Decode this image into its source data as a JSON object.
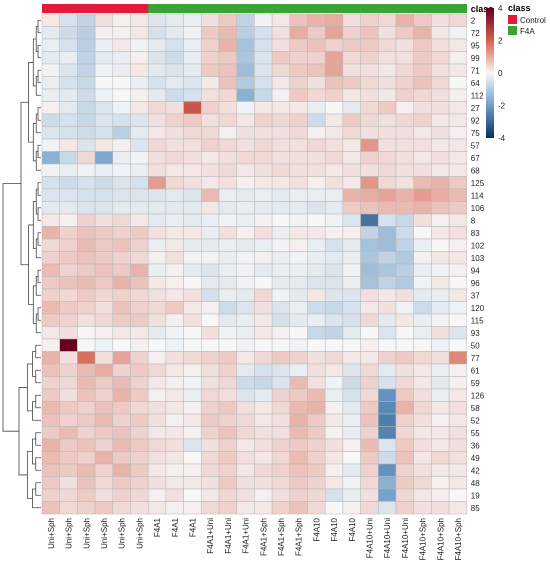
{
  "chart_data": {
    "type": "heatmap",
    "title": "",
    "xlabel": "",
    "ylabel": "",
    "columns": [
      "Uni+Sph",
      "Uni+Sph",
      "Uni+Sph",
      "Uni+Sph",
      "Uni+Sph",
      "Uni+Sph",
      "F4A1",
      "F4A1",
      "F4A1",
      "F4A1+Uni",
      "F4A1+Uni",
      "F4A1+Uni",
      "F4A1+Sph",
      "F4A1+Sph",
      "F4A1+Sph",
      "F4A10",
      "F4A10",
      "F4A10",
      "F4A10+Uni",
      "F4A10+Uni",
      "F4A10+Uni",
      "F4A10+Sph",
      "F4A10+Sph",
      "F4A10+Sph"
    ],
    "column_class": [
      "Control",
      "Control",
      "Control",
      "Control",
      "Control",
      "Control",
      "F4A",
      "F4A",
      "F4A",
      "F4A",
      "F4A",
      "F4A",
      "F4A",
      "F4A",
      "F4A",
      "F4A",
      "F4A",
      "F4A",
      "F4A",
      "F4A",
      "F4A",
      "F4A",
      "F4A",
      "F4A"
    ],
    "rows": [
      "2",
      "72",
      "95",
      "99",
      "71",
      "64",
      "112",
      "27",
      "92",
      "75",
      "57",
      "67",
      "68",
      "125",
      "114",
      "106",
      "8",
      "83",
      "102",
      "103",
      "94",
      "96",
      "37",
      "120",
      "115",
      "93",
      "50",
      "77",
      "61",
      "59",
      "126",
      "58",
      "52",
      "55",
      "36",
      "49",
      "42",
      "48",
      "19",
      "85"
    ],
    "values": [
      [
        0.2,
        -0.5,
        -0.8,
        0.3,
        0.1,
        0.2,
        -0.4,
        -0.3,
        -0.2,
        0.3,
        0.6,
        -0.8,
        -0.1,
        0.2,
        0.7,
        0.9,
        1.0,
        0.3,
        0.5,
        0.4,
        0.9,
        0.6,
        0.3,
        0.4
      ],
      [
        -0.3,
        -0.6,
        -0.9,
        0.1,
        0.1,
        0.2,
        -0.5,
        -0.3,
        -0.1,
        0.6,
        0.8,
        -0.9,
        -0.5,
        0.3,
        1.0,
        0.6,
        1.1,
        0.5,
        0.7,
        0.3,
        0.6,
        0.9,
        0.2,
        -0.1
      ],
      [
        -0.2,
        -0.5,
        -0.9,
        -0.2,
        0.2,
        -0.1,
        -0.3,
        -0.5,
        -0.2,
        0.5,
        0.9,
        -1.2,
        -0.5,
        0.3,
        0.6,
        0.7,
        0.5,
        0.6,
        0.6,
        0.4,
        0.3,
        0.6,
        0.3,
        0.2
      ],
      [
        -0.3,
        -0.2,
        -0.8,
        -0.3,
        -0.2,
        0.1,
        -0.4,
        -0.6,
        -0.2,
        0.5,
        0.6,
        -1.1,
        -0.4,
        0.6,
        0.5,
        0.5,
        1.1,
        0.4,
        0.5,
        0.3,
        0.3,
        0.6,
        0.4,
        0.1
      ],
      [
        -0.1,
        -0.4,
        -0.8,
        -0.1,
        -0.2,
        0.2,
        -0.3,
        -0.4,
        -0.3,
        0.6,
        0.7,
        -1.3,
        -0.4,
        0.4,
        0.6,
        0.7,
        1.1,
        0.3,
        0.3,
        0.2,
        0.4,
        0.6,
        0.3,
        0.2
      ],
      [
        -0.2,
        -0.5,
        -0.7,
        0.0,
        0.0,
        -0.2,
        -0.5,
        -0.3,
        -0.4,
        0.2,
        0.7,
        -1.0,
        -0.5,
        0.2,
        0.5,
        0.3,
        0.7,
        0.6,
        0.4,
        0.3,
        0.5,
        0.7,
        0.4,
        0.0
      ],
      [
        -0.2,
        -0.3,
        -0.6,
        -0.1,
        0.0,
        0.1,
        -0.3,
        -0.6,
        -0.5,
        0.3,
        0.4,
        -1.6,
        -0.7,
        0.1,
        0.6,
        0.4,
        0.5,
        0.2,
        0.3,
        0.2,
        0.5,
        0.4,
        0.3,
        0.1
      ],
      [
        0.1,
        -0.3,
        -0.7,
        -0.4,
        -0.1,
        0.2,
        0.4,
        0.3,
        2.2,
        0.5,
        0.3,
        -0.1,
        0.2,
        0.2,
        0.2,
        -0.2,
        0.0,
        -0.3,
        0.4,
        0.6,
        0.1,
        0.3,
        0.3,
        0.2
      ],
      [
        -0.6,
        -0.5,
        -0.7,
        -0.4,
        -0.5,
        -0.4,
        0.3,
        0.5,
        0.6,
        0.3,
        0.4,
        0.2,
        0.5,
        0.4,
        0.5,
        -0.6,
        0.2,
        0.6,
        0.4,
        0.3,
        0.4,
        0.5,
        0.2,
        0.2
      ],
      [
        -0.4,
        -0.5,
        -0.6,
        -0.5,
        -0.9,
        -0.3,
        0.2,
        0.3,
        0.4,
        0.4,
        0.1,
        0.3,
        0.3,
        0.3,
        0.4,
        0.1,
        0.2,
        0.4,
        0.3,
        0.3,
        0.3,
        0.2,
        0.3,
        0.1
      ],
      [
        -0.1,
        0.2,
        -0.4,
        0.2,
        0.1,
        -0.4,
        0.4,
        0.3,
        0.3,
        0.5,
        0.4,
        0.3,
        0.4,
        0.3,
        0.3,
        0.4,
        0.3,
        0.2,
        1.3,
        0.3,
        0.3,
        0.3,
        0.2,
        0.2
      ],
      [
        -1.6,
        -0.7,
        0.4,
        -1.8,
        -0.2,
        -0.1,
        0.3,
        0.4,
        0.3,
        0.2,
        0.3,
        0.4,
        0.4,
        0.3,
        0.3,
        0.3,
        0.4,
        0.2,
        0.5,
        0.4,
        0.3,
        0.2,
        0.3,
        0.2
      ],
      [
        -0.1,
        -0.2,
        -0.1,
        -0.2,
        -0.1,
        -0.2,
        0.3,
        0.2,
        0.2,
        0.3,
        0.4,
        0.2,
        0.3,
        0.4,
        0.3,
        0.3,
        0.2,
        0.3,
        0.3,
        0.4,
        0.3,
        0.3,
        0.2,
        0.2
      ],
      [
        -0.5,
        -0.6,
        -0.5,
        -0.6,
        -0.4,
        -0.5,
        1.2,
        0.4,
        0.3,
        0.2,
        0.3,
        0.1,
        0.2,
        0.2,
        0.3,
        0.1,
        0.3,
        0.2,
        1.3,
        0.4,
        0.3,
        0.8,
        0.9,
        0.6
      ],
      [
        -0.4,
        -0.4,
        -0.5,
        -0.5,
        -0.4,
        -0.4,
        -0.4,
        -0.3,
        -0.4,
        0.8,
        -0.2,
        -0.3,
        -0.2,
        -0.3,
        -0.2,
        -0.2,
        -0.2,
        0.9,
        1.0,
        1.1,
        0.9,
        1.2,
        1.0,
        0.8
      ],
      [
        -0.3,
        -0.3,
        -0.4,
        -0.4,
        -0.3,
        -0.3,
        -0.3,
        -0.3,
        -0.3,
        0.2,
        -0.3,
        -0.2,
        -0.3,
        -0.3,
        -0.3,
        -0.4,
        -0.3,
        0.6,
        0.7,
        0.8,
        0.8,
        0.9,
        0.7,
        0.6
      ],
      [
        0.2,
        0.1,
        0.5,
        0.3,
        0.4,
        0.2,
        -0.3,
        -0.2,
        -0.3,
        -0.2,
        -0.1,
        -0.2,
        0.1,
        0.0,
        -0.1,
        0.0,
        -0.1,
        -0.4,
        -2.8,
        -0.5,
        -0.7,
        0.3,
        0.1,
        0.2
      ],
      [
        0.9,
        0.5,
        0.7,
        0.6,
        0.5,
        0.6,
        0.3,
        0.2,
        0.2,
        -0.2,
        0.3,
        0.1,
        0.3,
        -0.2,
        0.2,
        0.2,
        0.1,
        0.1,
        -0.8,
        -1.3,
        -0.6,
        0.0,
        0.2,
        0.3
      ],
      [
        0.4,
        0.5,
        0.8,
        0.6,
        0.7,
        0.5,
        -0.2,
        0.2,
        -0.3,
        -0.3,
        -0.2,
        -0.3,
        -0.2,
        -0.1,
        0.1,
        -0.2,
        -0.5,
        -0.3,
        -1.2,
        -1.3,
        -0.8,
        -0.2,
        0.0,
        0.1
      ],
      [
        0.5,
        0.6,
        0.7,
        0.6,
        0.5,
        0.4,
        0.1,
        0.3,
        -0.1,
        -0.1,
        -0.2,
        -0.1,
        0.1,
        -0.2,
        -0.1,
        -0.2,
        -0.3,
        -0.2,
        -1.1,
        -0.8,
        -1.0,
        0.1,
        0.2,
        0.2
      ],
      [
        0.8,
        0.5,
        0.6,
        0.7,
        0.6,
        0.9,
        -0.2,
        0.1,
        -0.3,
        -0.4,
        -0.2,
        -0.1,
        -0.3,
        -0.2,
        -0.2,
        -0.3,
        -0.4,
        -0.1,
        -1.3,
        -1.1,
        -0.9,
        -0.2,
        -0.1,
        0.1
      ],
      [
        0.6,
        0.7,
        0.8,
        0.6,
        0.9,
        0.7,
        0.2,
        0.1,
        0.0,
        -0.3,
        -0.3,
        -0.1,
        0.0,
        -0.3,
        -0.3,
        -0.4,
        -0.4,
        -0.2,
        -1.2,
        -0.8,
        -1.0,
        -0.1,
        0.2,
        0.0
      ],
      [
        0.5,
        0.4,
        0.6,
        0.4,
        0.5,
        0.4,
        0.3,
        0.2,
        0.3,
        -0.5,
        -0.2,
        -0.3,
        0.4,
        -0.1,
        -0.3,
        0.2,
        -0.4,
        -0.4,
        0.3,
        0.2,
        0.3,
        -0.3,
        -0.2,
        0.2
      ],
      [
        0.8,
        0.6,
        0.5,
        0.3,
        0.7,
        0.5,
        0.4,
        0.6,
        0.2,
        0.1,
        -0.6,
        -0.4,
        0.3,
        -0.4,
        -0.2,
        -0.6,
        -0.7,
        -0.5,
        0.2,
        0.3,
        -0.1,
        -0.6,
        -0.3,
        -0.1
      ],
      [
        0.6,
        0.5,
        0.3,
        0.4,
        0.6,
        0.6,
        0.3,
        0.1,
        0.3,
        0.0,
        -0.3,
        -0.2,
        0.2,
        -0.5,
        -0.3,
        -0.2,
        -0.4,
        -0.5,
        0.4,
        -0.3,
        0.2,
        -0.2,
        -0.1,
        0.0
      ],
      [
        0.2,
        0.3,
        0.0,
        0.1,
        0.2,
        0.2,
        -0.3,
        -0.1,
        0.0,
        0.3,
        -0.1,
        -0.2,
        0.2,
        0.1,
        0.0,
        -0.7,
        -0.8,
        -0.3,
        0.0,
        -0.4,
        0.0,
        -0.2,
        0.3,
        -0.4
      ],
      [
        0.1,
        4.0,
        0.0,
        -0.1,
        0.0,
        0.1,
        0.0,
        -0.1,
        0.0,
        0.0,
        0.0,
        -0.1,
        0.0,
        0.0,
        -0.1,
        0.0,
        0.0,
        0.0,
        0.1,
        0.0,
        0.0,
        0.0,
        -0.1,
        0.0
      ],
      [
        0.9,
        0.3,
        1.8,
        0.3,
        1.1,
        0.5,
        0.1,
        0.3,
        0.4,
        0.5,
        0.6,
        0.2,
        0.4,
        0.6,
        0.5,
        0.3,
        0.4,
        0.2,
        0.2,
        0.5,
        0.6,
        0.4,
        0.3,
        1.5
      ],
      [
        0.7,
        0.5,
        0.8,
        1.0,
        0.5,
        0.6,
        0.4,
        0.2,
        0.1,
        0.3,
        0.5,
        -0.3,
        -0.5,
        -0.4,
        -0.2,
        0.3,
        0.2,
        -0.4,
        0.4,
        -0.3,
        0.3,
        0.2,
        -0.2,
        0.1
      ],
      [
        0.5,
        0.4,
        0.8,
        0.6,
        0.8,
        0.5,
        0.2,
        0.1,
        -0.1,
        0.3,
        0.4,
        -0.6,
        -0.7,
        -0.4,
        0.8,
        0.3,
        -0.1,
        -0.6,
        0.5,
        -0.5,
        0.4,
        0.2,
        -0.3,
        0.1
      ],
      [
        0.6,
        0.3,
        0.7,
        0.5,
        0.9,
        0.6,
        0.1,
        0.2,
        -0.2,
        0.4,
        0.3,
        -0.4,
        -0.3,
        0.5,
        0.6,
        0.8,
        -0.2,
        -0.5,
        0.4,
        -2.2,
        0.6,
        0.3,
        -0.2,
        0.2
      ],
      [
        0.8,
        0.6,
        0.5,
        0.7,
        0.6,
        0.4,
        0.3,
        0.2,
        0.1,
        0.5,
        0.6,
        0.3,
        0.2,
        0.4,
        0.8,
        0.9,
        0.1,
        -0.3,
        0.6,
        -2.4,
        0.9,
        0.4,
        0.2,
        0.3
      ],
      [
        0.7,
        0.5,
        0.6,
        0.8,
        0.5,
        0.6,
        0.3,
        0.1,
        0.2,
        0.6,
        0.5,
        0.4,
        0.2,
        0.3,
        0.9,
        0.6,
        0.2,
        -0.2,
        0.7,
        -2.6,
        0.5,
        0.3,
        0.1,
        0.2
      ],
      [
        0.6,
        0.8,
        0.5,
        0.6,
        0.7,
        0.5,
        0.2,
        0.2,
        0.1,
        0.5,
        0.7,
        0.4,
        0.3,
        0.3,
        0.8,
        0.6,
        0.1,
        -0.2,
        0.5,
        -2.5,
        0.4,
        0.2,
        0.2,
        0.3
      ],
      [
        0.9,
        0.6,
        0.7,
        0.5,
        0.8,
        0.6,
        0.4,
        0.3,
        -0.4,
        0.3,
        0.5,
        0.2,
        0.3,
        0.5,
        0.6,
        0.5,
        0.3,
        0.1,
        0.8,
        -0.4,
        0.6,
        0.3,
        0.2,
        0.3
      ],
      [
        0.8,
        0.6,
        0.5,
        0.9,
        0.6,
        0.5,
        0.3,
        0.2,
        0.0,
        0.4,
        0.6,
        0.3,
        0.2,
        0.4,
        0.8,
        0.5,
        0.2,
        0.0,
        0.6,
        -0.6,
        0.7,
        0.2,
        0.4,
        0.3
      ],
      [
        0.7,
        0.6,
        0.8,
        0.5,
        0.9,
        0.6,
        0.2,
        0.1,
        0.1,
        0.4,
        0.5,
        0.2,
        0.4,
        0.5,
        0.7,
        0.6,
        0.1,
        -0.3,
        0.5,
        -2.2,
        0.5,
        0.3,
        0.2,
        0.2
      ],
      [
        0.6,
        0.3,
        0.7,
        0.4,
        0.6,
        0.5,
        0.3,
        0.2,
        0.2,
        0.3,
        0.6,
        0.3,
        0.3,
        0.4,
        0.6,
        0.5,
        0.2,
        -0.1,
        0.4,
        -1.6,
        0.6,
        0.4,
        0.1,
        0.2
      ],
      [
        0.5,
        0.4,
        0.6,
        0.3,
        0.5,
        0.4,
        0.1,
        0.3,
        0.0,
        0.2,
        0.4,
        0.3,
        0.1,
        0.3,
        0.5,
        0.4,
        -0.5,
        -0.2,
        0.3,
        -1.9,
        0.4,
        0.2,
        0.1,
        0.0
      ],
      [
        0.7,
        0.4,
        0.5,
        0.6,
        0.4,
        0.3,
        0.2,
        0.1,
        0.1,
        0.4,
        0.5,
        0.2,
        0.2,
        0.5,
        0.7,
        0.4,
        0.0,
        0.1,
        0.4,
        -0.4,
        0.5,
        0.3,
        0.3,
        0.2
      ]
    ],
    "color_scale": {
      "ticks": [
        4,
        2,
        0,
        -2,
        -4
      ],
      "stops": [
        {
          "value": 4,
          "color": "#67001f"
        },
        {
          "value": 2,
          "color": "#d6604d"
        },
        {
          "value": 0,
          "color": "#f7f7f7"
        },
        {
          "value": -2,
          "color": "#6f9ec9"
        },
        {
          "value": -4,
          "color": "#053061"
        }
      ]
    },
    "legend": {
      "title": "class",
      "position": "top-right",
      "items": [
        {
          "label": "Control",
          "color": "#e41a3c"
        },
        {
          "label": "F4A",
          "color": "#3aa335"
        }
      ]
    },
    "class_bar_label": "class"
  }
}
